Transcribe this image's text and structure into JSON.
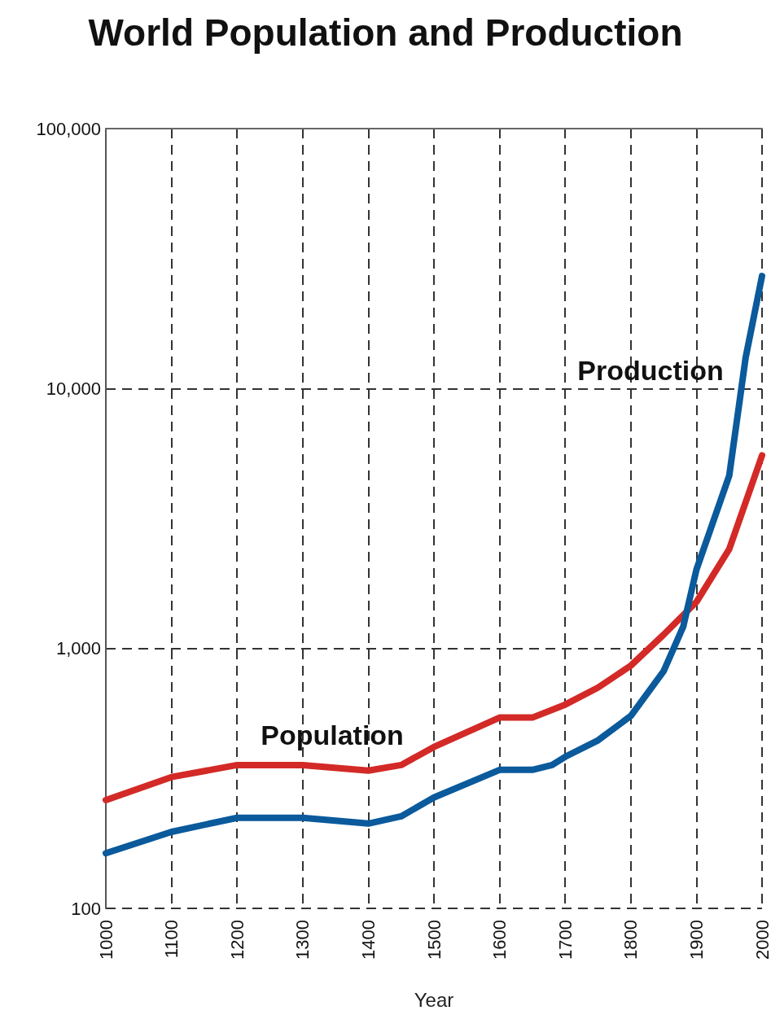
{
  "chart_data": {
    "type": "line",
    "title": "World Population and Production",
    "xlabel": "Year",
    "log": "y",
    "grid": true,
    "legend": false,
    "line_style": "solid",
    "xlim": [
      1000,
      2000
    ],
    "xticks": [
      1000,
      1100,
      1200,
      1300,
      1400,
      1500,
      1600,
      1700,
      1800,
      1900,
      2000
    ],
    "ylim": [
      100,
      100000
    ],
    "yticks": [
      100,
      {
        "value": 1000,
        "label": "1,000"
      },
      {
        "value": 10000,
        "label": "10,000"
      },
      {
        "value": 100000,
        "label": "100,000"
      }
    ],
    "series": [
      {
        "name": "Population",
        "color": "#d32a27",
        "x": [
          1000,
          1100,
          1200,
          1300,
          1400,
          1450,
          1500,
          1600,
          1650,
          1700,
          1750,
          1800,
          1850,
          1900,
          1950,
          2000
        ],
        "values": [
          261,
          320,
          356,
          356,
          339,
          356,
          418,
          542,
          542,
          608,
          707,
          859,
          1130,
          1510,
          2410,
          5530
        ]
      },
      {
        "name": "Production",
        "color": "#0a5a9c",
        "x": [
          1000,
          1100,
          1200,
          1300,
          1400,
          1450,
          1500,
          1600,
          1650,
          1680,
          1700,
          1750,
          1800,
          1850,
          1880,
          1900,
          1950,
          1975,
          2000
        ],
        "values": [
          163,
          197,
          223,
          223,
          212,
          226,
          267,
          341,
          341,
          356,
          383,
          443,
          550,
          817,
          1216,
          2010,
          4620,
          13150,
          27100
        ]
      }
    ]
  }
}
